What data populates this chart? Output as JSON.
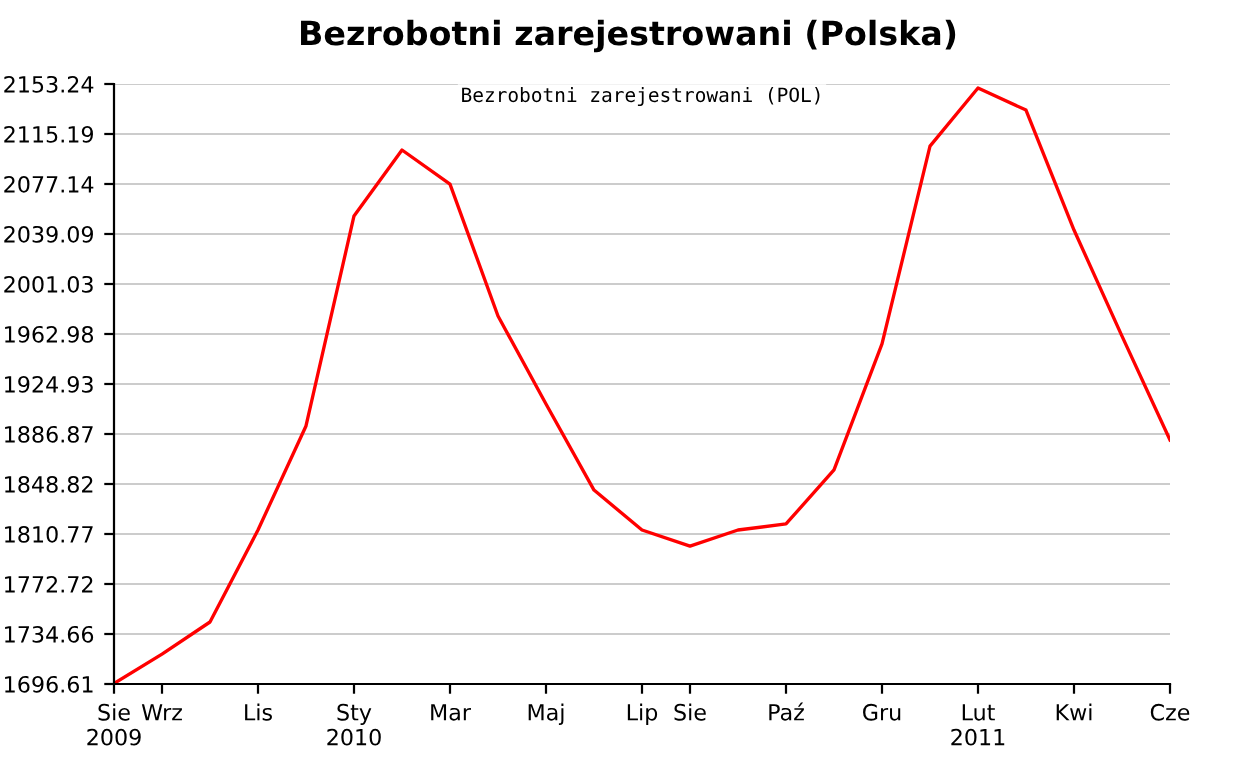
{
  "chart_data": {
    "type": "line",
    "title": "Bezrobotni zarejestrowani (Polska)",
    "subtitle": "Bezrobotni zarejestrowani (POL)",
    "categories": [
      "Sie\n2009",
      "Wrz",
      null,
      "Lis",
      null,
      "Sty\n2010",
      null,
      "Mar",
      null,
      "Maj",
      null,
      "Lip",
      "Sie",
      null,
      "Paź",
      null,
      "Gru",
      null,
      "Lut\n2011",
      null,
      "Kwi",
      null,
      "Cze"
    ],
    "series": [
      {
        "color": "#ff0000",
        "values": [
          1697,
          1719.4,
          1743.8,
          1813.8,
          1893,
          2052.8,
          2103,
          2077,
          1976.7,
          1909.7,
          1844.2,
          1813.8,
          1801.6,
          1813.8,
          1818.4,
          1859.5,
          1955.4,
          2106,
          2150.2,
          2133.4,
          2042.1,
          1961.4,
          1882.3
        ]
      }
    ],
    "ylim": [
      1696.61,
      2153.24
    ],
    "yticks": [
      1696.61,
      1734.66,
      1772.72,
      1810.77,
      1848.82,
      1886.87,
      1924.93,
      1962.98,
      2001.03,
      2039.09,
      2077.14,
      2115.19,
      2153.24
    ],
    "grid": "y",
    "legend": false,
    "marker": "none",
    "line_style": "solid"
  }
}
